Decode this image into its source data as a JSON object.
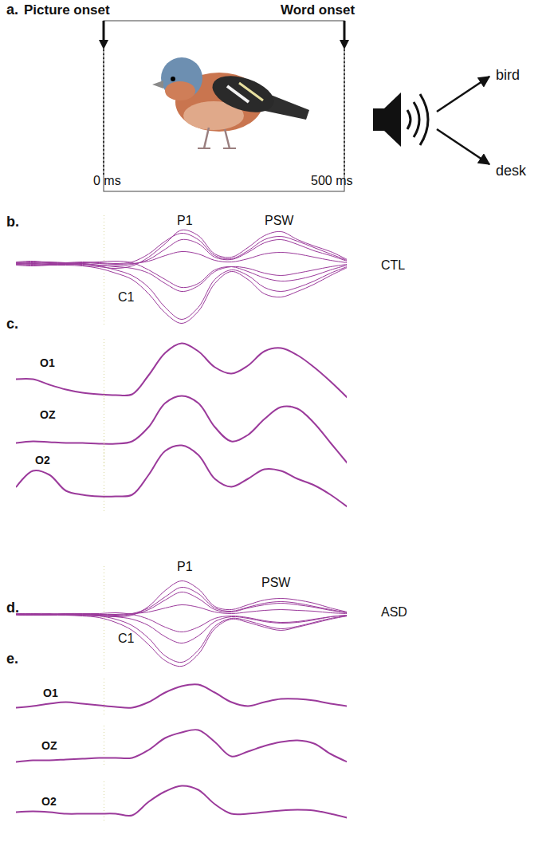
{
  "diagram": {
    "label": "a.",
    "picture_onset": "Picture onset",
    "word_onset": "Word onset",
    "start": "0 ms",
    "end": "500 ms",
    "choices": [
      "bird",
      "desk"
    ]
  },
  "chart_data": [
    {
      "type": "line",
      "panel": "b.",
      "group": "CTL",
      "annotations": [
        "P1",
        "PSW",
        "C1"
      ],
      "color": "#9b3a9b",
      "tick_labels": false,
      "x": [
        0,
        5,
        10,
        15,
        20,
        25,
        30,
        35,
        40,
        45,
        50,
        55,
        60,
        65,
        70,
        75,
        80,
        85,
        90,
        95,
        100
      ],
      "xlim": [
        0,
        100
      ],
      "ylim": [
        -80,
        60
      ],
      "onset_x": 26.5,
      "series": [
        {
          "values": [
            2,
            3,
            1,
            0,
            -2,
            -4,
            -6,
            -3,
            8,
            25,
            42,
            35,
            12,
            8,
            20,
            35,
            40,
            30,
            22,
            15,
            5
          ]
        },
        {
          "values": [
            1,
            2,
            2,
            1,
            0,
            -2,
            -3,
            -1,
            5,
            18,
            30,
            25,
            8,
            5,
            14,
            26,
            30,
            24,
            16,
            10,
            3
          ]
        },
        {
          "values": [
            0,
            1,
            0,
            0,
            1,
            0,
            -1,
            0,
            3,
            10,
            15,
            12,
            4,
            2,
            6,
            12,
            14,
            12,
            8,
            4,
            1
          ]
        },
        {
          "values": [
            -1,
            -2,
            -1,
            0,
            1,
            2,
            3,
            1,
            -8,
            -20,
            -30,
            -25,
            -8,
            -4,
            -10,
            -18,
            -22,
            -20,
            -15,
            -8,
            -2
          ]
        },
        {
          "values": [
            -2,
            -3,
            -2,
            -1,
            0,
            -3,
            -8,
            -15,
            -30,
            -55,
            -70,
            -55,
            -20,
            -8,
            -15,
            -30,
            -35,
            -30,
            -22,
            -12,
            -4
          ]
        },
        {
          "values": [
            0,
            -1,
            -2,
            -2,
            -3,
            -6,
            -12,
            -20,
            -38,
            -62,
            -75,
            -60,
            -25,
            -10,
            -20,
            -38,
            -42,
            -35,
            -26,
            -15,
            -5
          ]
        },
        {
          "values": [
            1,
            0,
            -1,
            -1,
            -1,
            -2,
            -4,
            -6,
            -12,
            -25,
            -35,
            -28,
            -10,
            -4,
            -6,
            -12,
            -15,
            -12,
            -8,
            -4,
            -1
          ]
        },
        {
          "values": [
            -1,
            0,
            1,
            1,
            2,
            1,
            0,
            2,
            12,
            28,
            38,
            30,
            10,
            6,
            16,
            30,
            34,
            28,
            20,
            12,
            4
          ]
        }
      ]
    },
    {
      "type": "line",
      "panel": "c.",
      "title": "O1",
      "color": "#9b3a9b",
      "tick_labels": false,
      "x": [
        0,
        5,
        10,
        15,
        20,
        25,
        30,
        35,
        40,
        45,
        50,
        55,
        60,
        65,
        70,
        75,
        80,
        85,
        90,
        95,
        100
      ],
      "xlim": [
        0,
        100
      ],
      "ylim": [
        -10,
        70
      ],
      "onset_x": 26.5,
      "series": [
        {
          "values": [
            20,
            20,
            13,
            7,
            3,
            1,
            0,
            1,
            25,
            53,
            65,
            55,
            35,
            27,
            37,
            55,
            59,
            50,
            35,
            17,
            -3
          ]
        }
      ]
    },
    {
      "type": "line",
      "title": "OZ",
      "color": "#9b3a9b",
      "tick_labels": false,
      "x": [
        0,
        5,
        10,
        15,
        20,
        25,
        30,
        35,
        40,
        45,
        50,
        55,
        60,
        65,
        70,
        75,
        80,
        85,
        90,
        95,
        100
      ],
      "xlim": [
        0,
        100
      ],
      "ylim": [
        -30,
        65
      ],
      "onset_x": 26.5,
      "series": [
        {
          "values": [
            1,
            3,
            2,
            1,
            1,
            0,
            0,
            3,
            21,
            51,
            60,
            51,
            21,
            3,
            11,
            31,
            46,
            44,
            26,
            1,
            -24
          ]
        }
      ]
    },
    {
      "type": "line",
      "title": "O2",
      "color": "#9b3a9b",
      "tick_labels": false,
      "x": [
        0,
        5,
        10,
        15,
        20,
        25,
        30,
        35,
        40,
        45,
        50,
        55,
        60,
        65,
        70,
        75,
        80,
        85,
        90,
        95,
        100
      ],
      "xlim": [
        0,
        100
      ],
      "ylim": [
        -20,
        70
      ],
      "onset_x": 26.5,
      "series": [
        {
          "values": [
            12,
            32,
            27,
            7,
            2,
            0,
            0,
            2,
            27,
            57,
            64,
            52,
            22,
            12,
            22,
            34,
            32,
            22,
            14,
            2,
            -13
          ]
        }
      ]
    },
    {
      "type": "line",
      "panel": "d.",
      "group": "ASD",
      "annotations": [
        "P1",
        "PSW",
        "C1"
      ],
      "color": "#9b3a9b",
      "tick_labels": false,
      "x": [
        0,
        5,
        10,
        15,
        20,
        25,
        30,
        35,
        40,
        45,
        50,
        55,
        60,
        65,
        70,
        75,
        80,
        85,
        90,
        95,
        100
      ],
      "xlim": [
        0,
        100
      ],
      "ylim": [
        -70,
        60
      ],
      "onset_x": 26.5,
      "series": [
        {
          "values": [
            1,
            1,
            0,
            0,
            -1,
            -2,
            -3,
            -1,
            10,
            30,
            42,
            32,
            10,
            6,
            12,
            18,
            20,
            18,
            14,
            8,
            3
          ]
        },
        {
          "values": [
            0,
            1,
            1,
            0,
            0,
            -1,
            -2,
            0,
            6,
            18,
            28,
            20,
            6,
            3,
            8,
            12,
            14,
            12,
            9,
            5,
            2
          ]
        },
        {
          "values": [
            0,
            0,
            0,
            1,
            0,
            0,
            0,
            1,
            3,
            8,
            12,
            9,
            3,
            1,
            3,
            5,
            6,
            5,
            4,
            2,
            1
          ]
        },
        {
          "values": [
            0,
            -1,
            0,
            0,
            1,
            1,
            2,
            0,
            -6,
            -16,
            -22,
            -16,
            -5,
            -2,
            -4,
            -8,
            -10,
            -9,
            -6,
            -3,
            -1
          ]
        },
        {
          "values": [
            -1,
            -1,
            0,
            -1,
            -1,
            -2,
            -6,
            -14,
            -30,
            -52,
            -60,
            -45,
            -15,
            -5,
            -8,
            -14,
            -18,
            -15,
            -10,
            -5,
            -2
          ]
        },
        {
          "values": [
            0,
            -1,
            -1,
            -1,
            -2,
            -4,
            -10,
            -20,
            -38,
            -58,
            -65,
            -50,
            -18,
            -6,
            -10,
            -16,
            -20,
            -16,
            -11,
            -6,
            -2
          ]
        },
        {
          "values": [
            0,
            0,
            0,
            0,
            -1,
            -1,
            -3,
            -6,
            -14,
            -28,
            -36,
            -27,
            -9,
            -3,
            -5,
            -9,
            -11,
            -10,
            -7,
            -3,
            -1
          ]
        },
        {
          "values": [
            1,
            0,
            0,
            1,
            1,
            0,
            -1,
            1,
            8,
            22,
            34,
            26,
            8,
            4,
            9,
            14,
            16,
            14,
            10,
            6,
            2
          ]
        }
      ]
    },
    {
      "type": "line",
      "panel": "e.",
      "title": "O1",
      "color": "#9b3a9b",
      "tick_labels": false,
      "x": [
        0,
        5,
        10,
        15,
        20,
        25,
        30,
        35,
        40,
        45,
        50,
        55,
        60,
        65,
        70,
        75,
        80,
        85,
        90,
        95,
        100
      ],
      "xlim": [
        0,
        100
      ],
      "ylim": [
        -10,
        35
      ],
      "onset_x": 26.5,
      "series": [
        {
          "values": [
            -1,
            1,
            4,
            6,
            4,
            2,
            0,
            -1,
            6,
            18,
            26,
            28,
            18,
            6,
            1,
            6,
            10,
            10,
            8,
            4,
            1
          ]
        }
      ]
    },
    {
      "type": "line",
      "title": "OZ",
      "color": "#9b3a9b",
      "tick_labels": false,
      "x": [
        0,
        5,
        10,
        15,
        20,
        25,
        30,
        35,
        40,
        45,
        50,
        55,
        60,
        65,
        70,
        75,
        80,
        85,
        90,
        95,
        100
      ],
      "xlim": [
        0,
        100
      ],
      "ylim": [
        -10,
        40
      ],
      "onset_x": 26.5,
      "series": [
        {
          "values": [
            -5,
            -3,
            -3,
            -2,
            -1,
            0,
            0,
            0,
            10,
            25,
            32,
            35,
            20,
            2,
            8,
            15,
            20,
            22,
            18,
            5,
            -5
          ]
        }
      ]
    },
    {
      "type": "line",
      "title": "O2",
      "color": "#9b3a9b",
      "tick_labels": false,
      "x": [
        0,
        5,
        10,
        15,
        20,
        25,
        30,
        35,
        40,
        45,
        50,
        55,
        60,
        65,
        70,
        75,
        80,
        85,
        90,
        95,
        100
      ],
      "xlim": [
        0,
        100
      ],
      "ylim": [
        -10,
        40
      ],
      "onset_x": 26.5,
      "series": [
        {
          "values": [
            2,
            3,
            2,
            0,
            0,
            0,
            0,
            -2,
            15,
            28,
            35,
            30,
            12,
            0,
            0,
            2,
            4,
            5,
            4,
            0,
            -5
          ]
        }
      ]
    }
  ]
}
